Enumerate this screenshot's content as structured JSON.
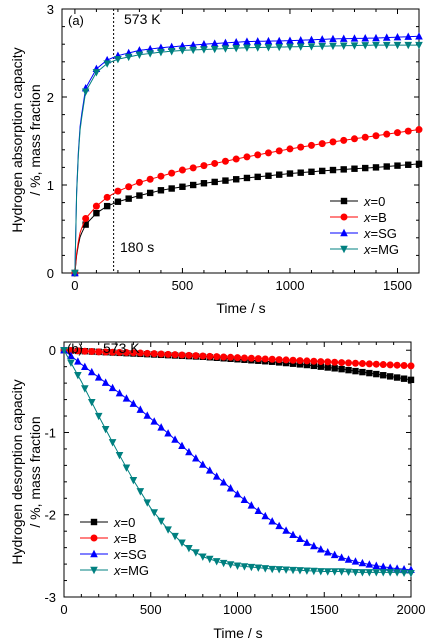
{
  "series_style": [
    {
      "color": "#000000",
      "marker": "square"
    },
    {
      "color": "#ff0000",
      "marker": "circle"
    },
    {
      "color": "#0000ff",
      "marker": "triangle-up"
    },
    {
      "color": "#008080",
      "marker": "triangle-down"
    }
  ],
  "chart_data": [
    {
      "type": "line",
      "panel_label": "(a)",
      "annotation_temp": "573 K",
      "annotation_time": "180 s",
      "vline_x": 180,
      "xlabel": "Time / s",
      "ylabel_line1": "Hydrogen absorption capacity",
      "ylabel_line2": "/ %, mass fraction",
      "xlim": [
        -60,
        1600
      ],
      "ylim": [
        0,
        3
      ],
      "xticks": [
        0,
        500,
        1000,
        1500
      ],
      "yticks": [
        0,
        1,
        2,
        3
      ],
      "legend_position": "lower-right",
      "series": [
        {
          "name": "x=0",
          "legend_var": "x",
          "legend_suffix": "=0",
          "x": [
            0,
            10,
            25,
            50,
            100,
            150,
            200,
            300,
            400,
            500,
            600,
            800,
            1000,
            1200,
            1400,
            1600
          ],
          "y": [
            0,
            0.25,
            0.42,
            0.55,
            0.68,
            0.76,
            0.81,
            0.88,
            0.94,
            0.98,
            1.02,
            1.08,
            1.13,
            1.17,
            1.2,
            1.24
          ]
        },
        {
          "name": "x=B",
          "legend_var": "x",
          "legend_suffix": "=B",
          "x": [
            0,
            10,
            25,
            50,
            100,
            150,
            200,
            300,
            400,
            500,
            600,
            800,
            1000,
            1200,
            1400,
            1600
          ],
          "y": [
            0,
            0.28,
            0.47,
            0.62,
            0.76,
            0.86,
            0.93,
            1.03,
            1.1,
            1.17,
            1.22,
            1.32,
            1.41,
            1.49,
            1.56,
            1.63
          ]
        },
        {
          "name": "x=SG",
          "legend_var": "x",
          "legend_suffix": "=SG",
          "x": [
            0,
            10,
            25,
            50,
            100,
            150,
            200,
            300,
            400,
            500,
            600,
            800,
            1000,
            1200,
            1400,
            1600
          ],
          "y": [
            0,
            1.15,
            1.7,
            2.1,
            2.32,
            2.42,
            2.47,
            2.53,
            2.56,
            2.58,
            2.6,
            2.63,
            2.64,
            2.66,
            2.67,
            2.69
          ]
        },
        {
          "name": "x=MG",
          "legend_var": "x",
          "legend_suffix": "=MG",
          "x": [
            0,
            10,
            25,
            50,
            100,
            150,
            200,
            300,
            400,
            500,
            600,
            800,
            1000,
            1200,
            1400,
            1600
          ],
          "y": [
            0,
            1.12,
            1.66,
            2.06,
            2.28,
            2.38,
            2.43,
            2.48,
            2.51,
            2.53,
            2.54,
            2.56,
            2.57,
            2.58,
            2.59,
            2.59
          ]
        }
      ]
    },
    {
      "type": "line",
      "panel_label": "(b)",
      "annotation_temp": "573 K",
      "xlabel": "Time / s",
      "ylabel_line1": "Hydrogen desorption capacity",
      "ylabel_line2": "/ %, mass fraction",
      "xlim": [
        0,
        2000
      ],
      "ylim": [
        -3,
        0.1
      ],
      "xticks": [
        0,
        500,
        1000,
        1500,
        2000
      ],
      "yticks": [
        0,
        -1,
        -2,
        -3
      ],
      "legend_position": "lower-left",
      "series": [
        {
          "name": "x=0",
          "legend_var": "x",
          "legend_suffix": "=0",
          "x": [
            0,
            200,
            400,
            600,
            800,
            1000,
            1200,
            1400,
            1600,
            1800,
            2000
          ],
          "y": [
            0,
            -0.02,
            -0.04,
            -0.06,
            -0.08,
            -0.11,
            -0.14,
            -0.18,
            -0.23,
            -0.29,
            -0.36
          ]
        },
        {
          "name": "x=B",
          "legend_var": "x",
          "legend_suffix": "=B",
          "x": [
            0,
            200,
            400,
            600,
            800,
            1000,
            1200,
            1400,
            1600,
            1800,
            2000
          ],
          "y": [
            0,
            -0.02,
            -0.03,
            -0.05,
            -0.07,
            -0.09,
            -0.11,
            -0.13,
            -0.15,
            -0.17,
            -0.19
          ]
        },
        {
          "name": "x=SG",
          "legend_var": "x",
          "legend_suffix": "=SG",
          "x": [
            0,
            100,
            200,
            300,
            400,
            500,
            600,
            700,
            800,
            900,
            1000,
            1100,
            1200,
            1300,
            1400,
            1500,
            1600,
            1700,
            1800,
            1900,
            2000
          ],
          "y": [
            0,
            -0.17,
            -0.33,
            -0.49,
            -0.65,
            -0.83,
            -1.01,
            -1.2,
            -1.39,
            -1.57,
            -1.75,
            -1.92,
            -2.08,
            -2.22,
            -2.34,
            -2.44,
            -2.52,
            -2.58,
            -2.62,
            -2.65,
            -2.67
          ]
        },
        {
          "name": "x=MG",
          "legend_var": "x",
          "legend_suffix": "=MG",
          "x": [
            0,
            100,
            200,
            300,
            400,
            500,
            600,
            700,
            800,
            900,
            1000,
            1100,
            1200,
            1300,
            1400,
            1500,
            1600,
            1700,
            1800,
            1900,
            2000
          ],
          "y": [
            0,
            -0.38,
            -0.8,
            -1.2,
            -1.58,
            -1.92,
            -2.18,
            -2.38,
            -2.51,
            -2.58,
            -2.62,
            -2.64,
            -2.66,
            -2.67,
            -2.68,
            -2.69,
            -2.69,
            -2.7,
            -2.7,
            -2.7,
            -2.71
          ]
        }
      ]
    }
  ]
}
